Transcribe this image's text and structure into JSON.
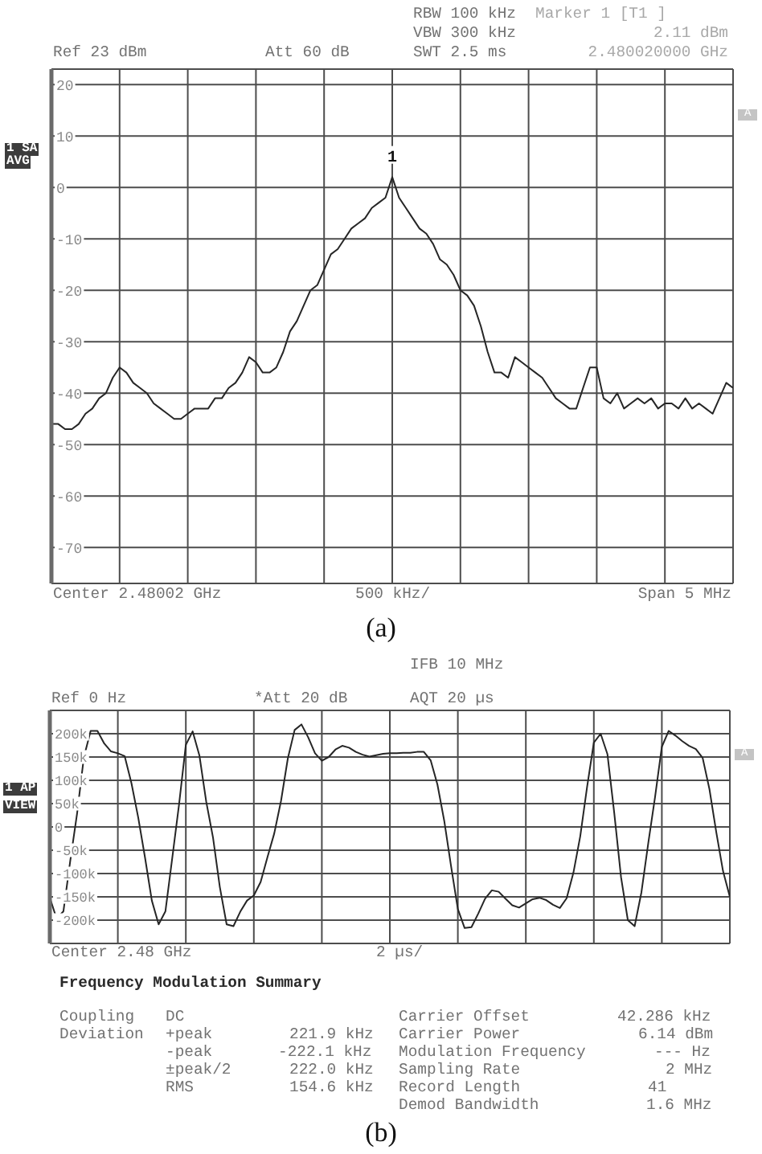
{
  "chart_data": [
    {
      "type": "line",
      "categories": [
        null,
        null,
        null,
        null,
        null,
        null,
        null,
        null,
        null,
        null,
        null,
        null,
        null,
        null,
        null,
        null,
        null,
        null,
        null,
        null,
        null,
        null,
        null,
        null,
        null,
        null,
        null,
        null,
        null,
        null,
        null,
        null,
        null,
        null,
        null,
        null,
        null,
        null,
        null,
        null,
        null,
        null,
        null,
        null,
        null,
        null,
        null,
        null,
        null,
        null,
        null,
        null,
        null,
        null,
        null,
        null,
        null,
        null,
        null,
        null,
        null,
        null,
        null,
        null,
        null,
        null,
        null,
        null,
        null,
        null,
        null,
        null,
        null,
        null,
        null,
        null,
        null,
        null,
        null,
        null,
        null,
        null,
        null,
        null,
        null,
        null,
        null,
        null,
        null,
        null,
        null,
        null,
        null,
        null,
        null,
        null,
        null,
        null,
        null,
        null,
        null
      ],
      "series": [
        {
          "color": "#262626",
          "values": [
            -46,
            -46,
            -47,
            -47,
            -46,
            -44,
            -43,
            -41,
            -40,
            -37,
            -35,
            -36,
            -38,
            -39,
            -40,
            -42,
            -43,
            -44,
            -45,
            -45,
            -44,
            -43,
            -43,
            -43,
            -41,
            -41,
            -39,
            -38,
            -36,
            -33,
            -34,
            -36,
            -36,
            -35,
            -32,
            -28,
            -26,
            -23,
            -20,
            -19,
            -16,
            -13,
            -12,
            -10,
            -8,
            -7,
            -6,
            -4,
            -3,
            -2,
            2,
            -2,
            -4,
            -6,
            -8,
            -9,
            -11,
            -14,
            -15,
            -17,
            -20,
            -21,
            -23,
            -27,
            -32,
            -36,
            -36,
            -37,
            -33,
            -34,
            -35,
            -36,
            -37,
            -39,
            -41,
            -42,
            -43,
            -43,
            -39,
            -35,
            -35,
            -41,
            -42,
            -40,
            -43,
            -42,
            -41,
            -42,
            -41,
            -43,
            -42,
            -42,
            -43,
            -41,
            -43,
            -42,
            -43,
            -44,
            -41,
            -38,
            -39
          ]
        }
      ],
      "ylim": [
        -77,
        23
      ],
      "yticks": [
        -70,
        -60,
        -50,
        -40,
        -30,
        -20,
        -10,
        0,
        10,
        20
      ],
      "grid": true,
      "annotations": [
        "RBW 100 kHz",
        "Marker 1 [T1 ]",
        "VBW 300 kHz",
        "2.11 dBm",
        "Ref 23 dBm",
        "Att 60 dB",
        "SWT 2.5 ms",
        "2.480020000 GHz",
        "1 SA",
        "AVG",
        "A",
        {
          "text": "1",
          "y": 2.11
        },
        "Center 2.48002 GHz",
        "500 kHz/",
        "Span 5 MHz",
        "(a)"
      ]
    },
    {
      "type": "line",
      "categories": [
        null,
        null,
        null,
        null,
        null,
        null,
        null,
        null,
        null,
        null,
        null,
        null,
        null,
        null,
        null,
        null,
        null,
        null,
        null,
        null,
        null,
        null,
        null,
        null,
        null,
        null,
        null,
        null,
        null,
        null,
        null,
        null,
        null,
        null,
        null,
        null,
        null,
        null,
        null,
        null,
        null,
        null,
        null,
        null,
        null,
        null,
        null,
        null,
        null,
        null,
        null,
        null,
        null,
        null,
        null,
        null,
        null,
        null,
        null,
        null,
        null,
        null,
        null,
        null,
        null,
        null,
        null,
        null,
        null,
        null,
        null,
        null,
        null,
        null,
        null,
        null,
        null,
        null,
        null,
        null,
        null,
        null,
        null,
        null,
        null,
        null,
        null,
        null,
        null,
        null,
        null,
        null,
        null,
        null,
        null,
        null,
        null,
        null,
        null,
        null,
        null
      ],
      "series": [
        {
          "color": "#262626",
          "values": [
            -152000,
            -197000,
            -181000,
            -73000,
            28000,
            149000,
            206000,
            206000,
            179000,
            162000,
            158000,
            152000,
            94000,
            20000,
            -66000,
            -158000,
            -209000,
            -181000,
            -67000,
            48000,
            176000,
            205000,
            153000,
            54000,
            -23000,
            -129000,
            -209000,
            -213000,
            -182000,
            -158000,
            -147000,
            -118000,
            -65000,
            -14000,
            56000,
            147000,
            208000,
            220000,
            192000,
            158000,
            142000,
            150000,
            166000,
            174000,
            170000,
            161000,
            155000,
            151000,
            154000,
            157000,
            158000,
            158000,
            159000,
            159000,
            161000,
            161000,
            143000,
            91000,
            13000,
            -84000,
            -176000,
            -217000,
            -215000,
            -186000,
            -154000,
            -136000,
            -139000,
            -154000,
            -168000,
            -173000,
            -164000,
            -155000,
            -152000,
            -157000,
            -167000,
            -174000,
            -153000,
            -98000,
            -20000,
            85000,
            181000,
            200000,
            156000,
            30000,
            -108000,
            -200000,
            -213000,
            -140000,
            -35000,
            64000,
            172000,
            206000,
            196000,
            184000,
            174000,
            167000,
            148000,
            81000,
            -11000,
            -95000,
            -150000
          ]
        }
      ],
      "ylim": [
        -250000,
        250000
      ],
      "yticks": [
        {
          "value": -200000,
          "label": "-200k"
        },
        {
          "value": -150000,
          "label": "-150k"
        },
        {
          "value": -100000,
          "label": "-100k"
        },
        {
          "value": -50000,
          "label": "-50k"
        },
        0,
        {
          "value": 50000,
          "label": "50k"
        },
        {
          "value": 100000,
          "label": "100k"
        },
        {
          "value": 150000,
          "label": "150k"
        },
        {
          "value": 200000,
          "label": "200k"
        }
      ],
      "grid": true,
      "annotations": [
        "IFB 10 MHz",
        "Ref 0 Hz",
        "*Att 20 dB",
        "AQT 20 µs",
        "1 AP",
        "VIEW",
        "A",
        "Center 2.48 GHz",
        "2 µs/"
      ]
    },
    {
      "type": "other",
      "title": "Frequency Modulation Summary",
      "annotations": [
        "Coupling",
        "DC",
        "Carrier Offset",
        "42.286 kHz",
        "Deviation",
        "+peak",
        "221.9 kHz",
        "Carrier Power",
        "6.14 dBm",
        "-peak",
        "-222.1 kHz",
        "Modulation Frequency",
        "--- Hz",
        "±peak/2",
        "222.0 kHz",
        "Sampling Rate",
        "2 MHz",
        "RMS",
        "154.6 kHz",
        "Record Length",
        "41",
        "Demod Bandwidth",
        "1.6 MHz",
        "(b)"
      ]
    }
  ]
}
